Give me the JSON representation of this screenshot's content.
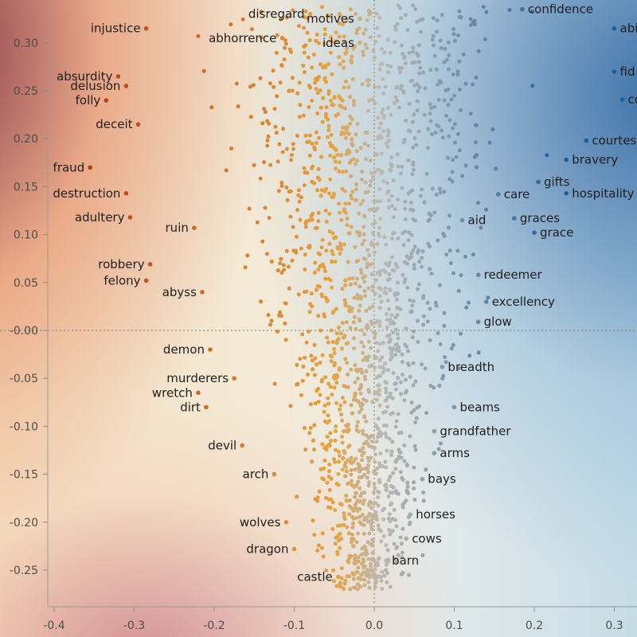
{
  "chart_data": {
    "type": "scatter",
    "xlim": [
      -0.42,
      0.32
    ],
    "ylim": [
      -0.285,
      0.345
    ],
    "x_ticks": [
      "-0.4",
      "-0.3",
      "-0.2",
      "-0.1",
      "0.0",
      "0.1",
      "0.2",
      "0.3"
    ],
    "y_ticks": [
      "0.30",
      "0.25",
      "0.20",
      "0.15",
      "0.10",
      "0.05",
      "-0.00",
      "-0.05",
      "-0.10",
      "-0.15",
      "-0.20",
      "-0.25"
    ],
    "grid": false,
    "reference_lines": {
      "x": 0,
      "y": 0,
      "style": "dotted"
    },
    "color_scale": {
      "negative": "#b8330f",
      "middle": "#e8a240",
      "neutral": "#b9b9b4",
      "positive": "#1f5e9a"
    },
    "labeled_points": [
      {
        "word": "confidence",
        "x": 0.185,
        "y": 0.335
      },
      {
        "word": "injustice",
        "x": -0.285,
        "y": 0.315
      },
      {
        "word": "disregard",
        "x": -0.08,
        "y": 0.33
      },
      {
        "word": "motives",
        "x": -0.018,
        "y": 0.325
      },
      {
        "word": "abhorrence",
        "x": -0.115,
        "y": 0.305
      },
      {
        "word": "ideas",
        "x": -0.018,
        "y": 0.3
      },
      {
        "word": "absurdity",
        "x": -0.32,
        "y": 0.265
      },
      {
        "word": "delusion",
        "x": -0.31,
        "y": 0.255
      },
      {
        "word": "folly",
        "x": -0.335,
        "y": 0.24
      },
      {
        "word": "deceit",
        "x": -0.295,
        "y": 0.215
      },
      {
        "word": "courtesy",
        "x": 0.265,
        "y": 0.198
      },
      {
        "word": "bravery",
        "x": 0.24,
        "y": 0.178
      },
      {
        "word": "fraud",
        "x": -0.355,
        "y": 0.17
      },
      {
        "word": "gifts",
        "x": 0.205,
        "y": 0.155
      },
      {
        "word": "care",
        "x": 0.155,
        "y": 0.142
      },
      {
        "word": "hospitality",
        "x": 0.24,
        "y": 0.143
      },
      {
        "word": "destruction",
        "x": -0.31,
        "y": 0.143
      },
      {
        "word": "aid",
        "x": 0.11,
        "y": 0.115
      },
      {
        "word": "graces",
        "x": 0.175,
        "y": 0.117
      },
      {
        "word": "adultery",
        "x": -0.305,
        "y": 0.118
      },
      {
        "word": "ruin",
        "x": -0.225,
        "y": 0.107
      },
      {
        "word": "grace",
        "x": 0.2,
        "y": 0.102
      },
      {
        "word": "robbery",
        "x": -0.28,
        "y": 0.069
      },
      {
        "word": "redeemer",
        "x": 0.13,
        "y": 0.058
      },
      {
        "word": "felony",
        "x": -0.285,
        "y": 0.052
      },
      {
        "word": "abyss",
        "x": -0.215,
        "y": 0.04
      },
      {
        "word": "excellency",
        "x": 0.14,
        "y": 0.03
      },
      {
        "word": "glow",
        "x": 0.13,
        "y": 0.009
      },
      {
        "word": "demon",
        "x": -0.205,
        "y": -0.02
      },
      {
        "word": "breadth",
        "x": 0.085,
        "y": -0.038
      },
      {
        "word": "murderers",
        "x": -0.175,
        "y": -0.05
      },
      {
        "word": "dirt",
        "x": -0.21,
        "y": -0.08
      },
      {
        "word": "wretch",
        "x": -0.22,
        "y": -0.065
      },
      {
        "word": "beams",
        "x": 0.1,
        "y": -0.08
      },
      {
        "word": "grandfather",
        "x": 0.075,
        "y": -0.105
      },
      {
        "word": "devil",
        "x": -0.165,
        "y": -0.12
      },
      {
        "word": "arms",
        "x": 0.075,
        "y": -0.128
      },
      {
        "word": "bays",
        "x": 0.06,
        "y": -0.155
      },
      {
        "word": "arch",
        "x": -0.125,
        "y": -0.15
      },
      {
        "word": "horses",
        "x": 0.045,
        "y": -0.192
      },
      {
        "word": "wolves",
        "x": -0.11,
        "y": -0.2
      },
      {
        "word": "cows",
        "x": 0.04,
        "y": -0.217
      },
      {
        "word": "dragon",
        "x": -0.1,
        "y": -0.228
      },
      {
        "word": "barn",
        "x": 0.015,
        "y": -0.24
      },
      {
        "word": "castle",
        "x": -0.045,
        "y": -0.257
      },
      {
        "word": "abi",
        "x": 0.3,
        "y": 0.315
      },
      {
        "word": "fid",
        "x": 0.3,
        "y": 0.27
      },
      {
        "word": "co",
        "x": 0.31,
        "y": 0.241
      }
    ]
  }
}
